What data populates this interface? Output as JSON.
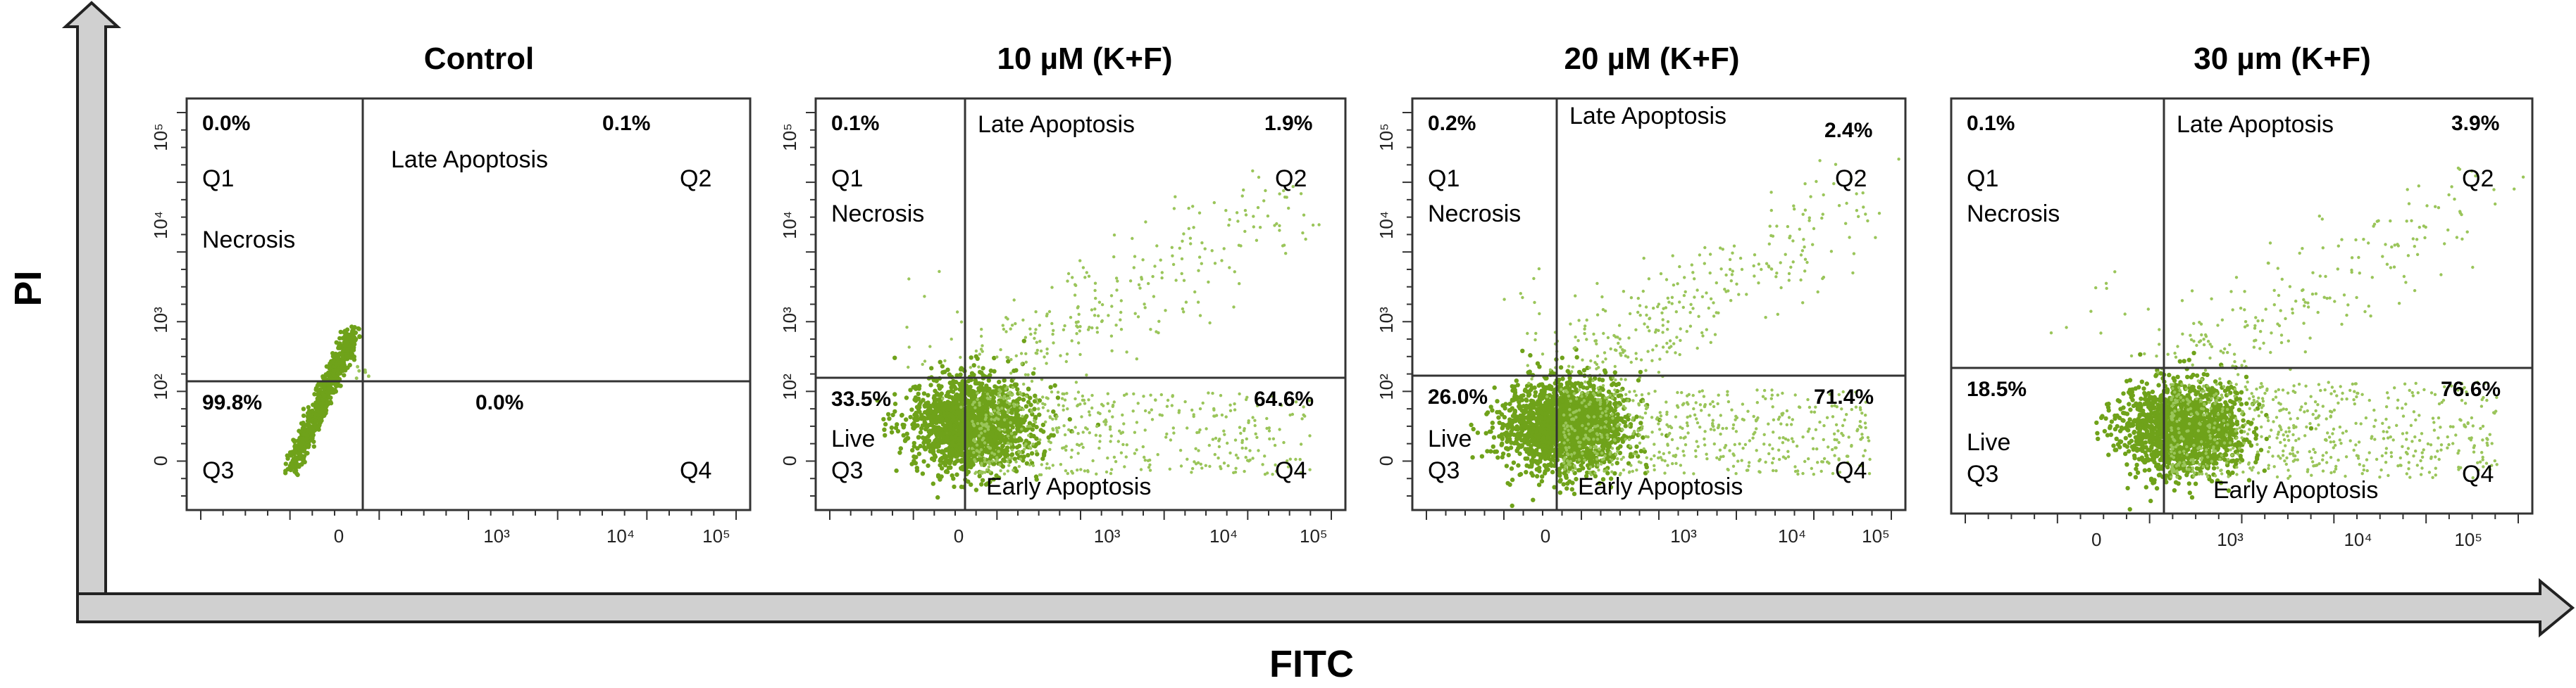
{
  "figure": {
    "x_axis_title": "FITC",
    "y_axis_title": "PI"
  },
  "colors": {
    "dots": "#6fa21a",
    "dots_light": "#9ac55a",
    "frame": "#333333",
    "axis_arrow_fill": "#d0d0d0",
    "axis_arrow_stroke": "#222222"
  },
  "chart_data": [
    {
      "type": "scatter",
      "title": "Control",
      "xlabel": "",
      "ylabel": "",
      "x_ticks": [
        "0",
        "10³",
        "10⁴",
        "10⁵"
      ],
      "y_ticks": [
        "0",
        "10²",
        "10³",
        "10⁴",
        "10⁵"
      ],
      "quadrant_names": {
        "q1": "Q1",
        "q2": "Q2",
        "q3": "Q3",
        "q4": "Q4"
      },
      "region_labels": {
        "necrosis": "Necrosis",
        "late": "Late Apoptosis",
        "live": "",
        "early": ""
      },
      "percentages": {
        "q1": "0.0%",
        "q2": "0.1%",
        "q3": "99.8%",
        "q4": "0.0%"
      }
    },
    {
      "type": "scatter",
      "title": "10 µM (K+F)",
      "xlabel": "",
      "ylabel": "",
      "x_ticks": [
        "0",
        "10³",
        "10⁴",
        "10⁵"
      ],
      "y_ticks": [
        "0",
        "10²",
        "10³",
        "10⁴",
        "10⁵"
      ],
      "quadrant_names": {
        "q1": "Q1",
        "q2": "Q2",
        "q3": "Q3",
        "q4": "Q4"
      },
      "region_labels": {
        "necrosis": "Necrosis",
        "late": "Late Apoptosis",
        "live": "Live",
        "early": "Early Apoptosis"
      },
      "percentages": {
        "q1": "0.1%",
        "q2": "1.9%",
        "q3": "33.5%",
        "q4": "64.6%"
      }
    },
    {
      "type": "scatter",
      "title": "20 µM (K+F)",
      "xlabel": "",
      "ylabel": "",
      "x_ticks": [
        "0",
        "10³",
        "10⁴",
        "10⁵"
      ],
      "y_ticks": [
        "0",
        "10²",
        "10³",
        "10⁴",
        "10⁵"
      ],
      "quadrant_names": {
        "q1": "Q1",
        "q2": "Q2",
        "q3": "Q3",
        "q4": "Q4"
      },
      "region_labels": {
        "necrosis": "Necrosis",
        "late": "Late Apoptosis",
        "live": "Live",
        "early": "Early Apoptosis"
      },
      "percentages": {
        "q1": "0.2%",
        "q2": "2.4%",
        "q3": "26.0%",
        "q4": "71.4%"
      }
    },
    {
      "type": "scatter",
      "title": "30 µm (K+F)",
      "xlabel": "",
      "ylabel": "",
      "x_ticks": [
        "0",
        "10³",
        "10⁴",
        "10⁵"
      ],
      "y_ticks": [],
      "quadrant_names": {
        "q1": "Q1",
        "q2": "Q2",
        "q3": "Q3",
        "q4": "Q4"
      },
      "region_labels": {
        "necrosis": "Necrosis",
        "late": "Late Apoptosis",
        "live": "Live",
        "early": "Early Apoptosis"
      },
      "percentages": {
        "q1": "0.1%",
        "q2": "3.9%",
        "q3": "18.5%",
        "q4": "76.6%"
      }
    }
  ]
}
